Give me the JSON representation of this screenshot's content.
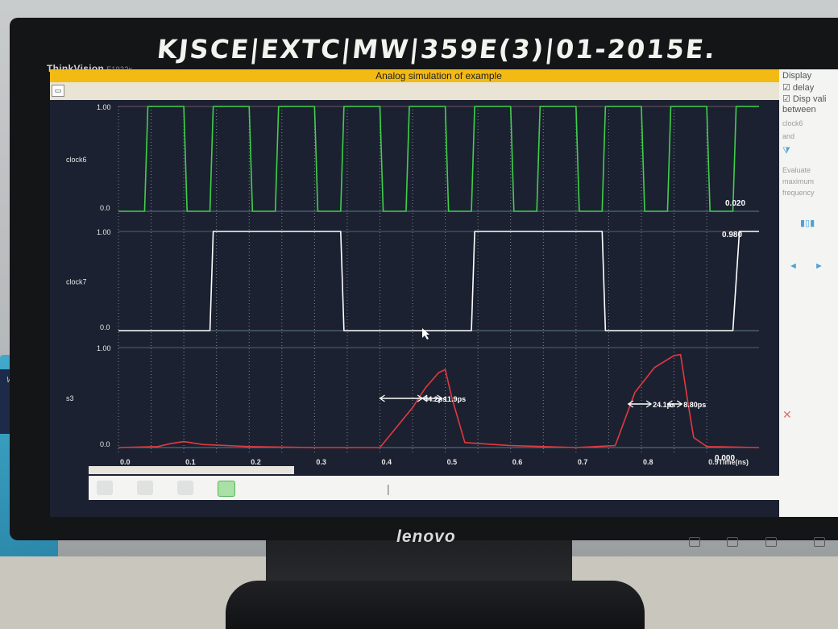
{
  "monitor": {
    "brand_left": "ThinkVision",
    "model": "E1922s",
    "brand_bottom": "lenovo",
    "sticker_text": "KJSCE|EXTC|MW|359E(3)|01-2015E."
  },
  "window": {
    "title": "Analog simulation of example",
    "toolbar_icon": "save-icon"
  },
  "plot": {
    "traces": [
      {
        "name": "clock6",
        "color": "#3ed14a",
        "top_label": "1.00",
        "bottom_label": "0.0",
        "readout": "0.020"
      },
      {
        "name": "clock7",
        "color": "#ffffff",
        "top_label": "1.00",
        "bottom_label": "0.0",
        "readout": "0.980"
      },
      {
        "name": "s3",
        "color": "#e2393f",
        "top_label": "1.00",
        "bottom_label": "0.0",
        "readout": "0.000"
      }
    ],
    "measurements": [
      "44.2ps",
      "11.9ps",
      "24.1ps",
      "8.80ps"
    ],
    "time_ticks": [
      "0.0",
      "0.1",
      "0.2",
      "0.3",
      "0.4",
      "0.5",
      "0.6",
      "0.7",
      "0.8",
      "0.9Time(ns)"
    ]
  },
  "chart_data": {
    "type": "line",
    "xlabel": "Time(ns)",
    "xlim": [
      0.0,
      0.98
    ],
    "series": [
      {
        "name": "clock6",
        "x": [
          0.0,
          0.04,
          0.045,
          0.1,
          0.105,
          0.14,
          0.145,
          0.2,
          0.205,
          0.24,
          0.245,
          0.3,
          0.305,
          0.34,
          0.345,
          0.4,
          0.405,
          0.44,
          0.445,
          0.5,
          0.505,
          0.54,
          0.545,
          0.6,
          0.605,
          0.64,
          0.645,
          0.7,
          0.705,
          0.74,
          0.745,
          0.8,
          0.805,
          0.84,
          0.845,
          0.9,
          0.905,
          0.94,
          0.945,
          0.98
        ],
        "y": [
          0,
          0,
          1,
          1,
          0,
          0,
          1,
          1,
          0,
          0,
          1,
          1,
          0,
          0,
          1,
          1,
          0,
          0,
          1,
          1,
          0,
          0,
          1,
          1,
          0,
          0,
          1,
          1,
          0,
          0,
          1,
          1,
          0,
          0,
          1,
          1,
          0,
          0,
          1,
          1
        ]
      },
      {
        "name": "clock7",
        "x": [
          0.0,
          0.14,
          0.145,
          0.34,
          0.345,
          0.54,
          0.545,
          0.74,
          0.745,
          0.94,
          0.95,
          0.98
        ],
        "y": [
          0,
          0,
          1,
          1,
          0,
          0,
          1,
          1,
          0,
          0,
          1,
          1
        ]
      },
      {
        "name": "s3",
        "x": [
          0.0,
          0.06,
          0.08,
          0.1,
          0.13,
          0.2,
          0.3,
          0.4,
          0.45,
          0.47,
          0.49,
          0.5,
          0.51,
          0.53,
          0.6,
          0.7,
          0.76,
          0.79,
          0.82,
          0.85,
          0.86,
          0.87,
          0.88,
          0.9,
          0.98
        ],
        "y": [
          0,
          0.01,
          0.04,
          0.06,
          0.03,
          0.01,
          0.0,
          0.0,
          0.4,
          0.6,
          0.75,
          0.78,
          0.5,
          0.05,
          0.02,
          0.0,
          0.02,
          0.55,
          0.8,
          0.92,
          0.93,
          0.5,
          0.1,
          0.01,
          0.0
        ]
      }
    ]
  },
  "side_panel": {
    "items": [
      "Display",
      "☑ delay",
      "☑ Disp vali",
      "between",
      "clock6",
      "and",
      "Evaluate",
      "maximum",
      "frequency"
    ]
  }
}
